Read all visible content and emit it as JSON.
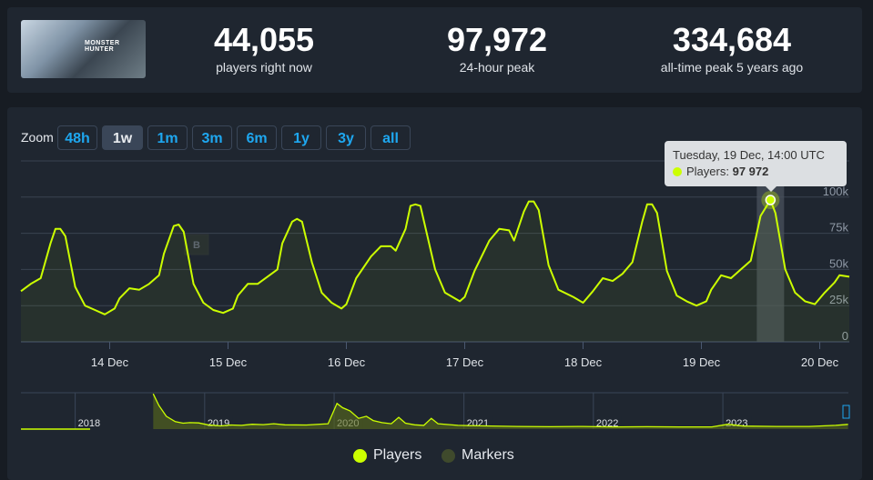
{
  "game": {
    "cover_title": "MONSTER HUNTER"
  },
  "stats": [
    {
      "value": "44,055",
      "label": "players right now"
    },
    {
      "value": "97,972",
      "label": "24-hour peak"
    },
    {
      "value": "334,684",
      "label": "all-time peak 5 years ago"
    }
  ],
  "zoom": {
    "label": "Zoom",
    "buttons": [
      "48h",
      "1w",
      "1m",
      "3m",
      "6m",
      "1y",
      "3y",
      "all"
    ],
    "selected": "1w"
  },
  "tooltip": {
    "date": "Tuesday, 19 Dec, 14:00 UTC",
    "series": "Players:",
    "value": "97 972"
  },
  "marker": {
    "label": "B"
  },
  "legend": [
    {
      "label": "Players",
      "color": "#ccff00"
    },
    {
      "label": "Markers",
      "color": "#3f4a2c"
    }
  ],
  "colors": {
    "line": "#ccff00",
    "grid": "#3a4350",
    "highlight": "#4a525c"
  },
  "chart_data": [
    {
      "type": "line",
      "series": [
        {
          "name": "Players",
          "values": [
            [
              "2023-12-13T06:00",
              35000
            ],
            [
              "2023-12-13T08:00",
              40000
            ],
            [
              "2023-12-13T10:00",
              44000
            ],
            [
              "2023-12-13T12:00",
              68000
            ],
            [
              "2023-12-13T13:00",
              78000
            ],
            [
              "2023-12-13T14:00",
              78000
            ],
            [
              "2023-12-13T15:00",
              73000
            ],
            [
              "2023-12-13T17:00",
              38000
            ],
            [
              "2023-12-13T19:00",
              25000
            ],
            [
              "2023-12-13T21:00",
              22000
            ],
            [
              "2023-12-13T23:00",
              19000
            ],
            [
              "2023-12-14T01:00",
              23000
            ],
            [
              "2023-12-14T02:00",
              30000
            ],
            [
              "2023-12-14T04:00",
              37000
            ],
            [
              "2023-12-14T06:00",
              36000
            ],
            [
              "2023-12-14T08:00",
              40000
            ],
            [
              "2023-12-14T10:00",
              46000
            ],
            [
              "2023-12-14T11:00",
              61000
            ],
            [
              "2023-12-14T13:00",
              80000
            ],
            [
              "2023-12-14T14:00",
              81000
            ],
            [
              "2023-12-14T15:00",
              76000
            ],
            [
              "2023-12-14T17:00",
              40000
            ],
            [
              "2023-12-14T19:00",
              27000
            ],
            [
              "2023-12-14T21:00",
              22000
            ],
            [
              "2023-12-14T23:00",
              20000
            ],
            [
              "2023-12-15T01:00",
              23000
            ],
            [
              "2023-12-15T02:00",
              32000
            ],
            [
              "2023-12-15T04:00",
              40000
            ],
            [
              "2023-12-15T06:00",
              40000
            ],
            [
              "2023-12-15T08:00",
              45000
            ],
            [
              "2023-12-15T10:00",
              50000
            ],
            [
              "2023-12-15T11:00",
              68000
            ],
            [
              "2023-12-15T13:00",
              83000
            ],
            [
              "2023-12-15T14:00",
              85000
            ],
            [
              "2023-12-15T15:00",
              83000
            ],
            [
              "2023-12-15T17:00",
              55000
            ],
            [
              "2023-12-15T19:00",
              34000
            ],
            [
              "2023-12-15T21:00",
              27000
            ],
            [
              "2023-12-15T23:00",
              23000
            ],
            [
              "2023-12-16T00:00",
              26000
            ],
            [
              "2023-12-16T02:00",
              44000
            ],
            [
              "2023-12-16T05:00",
              59000
            ],
            [
              "2023-12-16T07:00",
              66000
            ],
            [
              "2023-12-16T09:00",
              66000
            ],
            [
              "2023-12-16T10:00",
              63000
            ],
            [
              "2023-12-16T12:00",
              78000
            ],
            [
              "2023-12-16T13:00",
              94000
            ],
            [
              "2023-12-16T14:00",
              95000
            ],
            [
              "2023-12-16T15:00",
              94000
            ],
            [
              "2023-12-16T18:00",
              50000
            ],
            [
              "2023-12-16T20:00",
              34000
            ],
            [
              "2023-12-16T23:00",
              28000
            ],
            [
              "2023-12-17T00:00",
              31000
            ],
            [
              "2023-12-17T02:00",
              49000
            ],
            [
              "2023-12-17T05:00",
              70000
            ],
            [
              "2023-12-17T07:00",
              78000
            ],
            [
              "2023-12-17T09:00",
              77000
            ],
            [
              "2023-12-17T10:00",
              70000
            ],
            [
              "2023-12-17T12:00",
              90000
            ],
            [
              "2023-12-17T13:00",
              97000
            ],
            [
              "2023-12-17T14:00",
              97000
            ],
            [
              "2023-12-17T15:00",
              91000
            ],
            [
              "2023-12-17T17:00",
              53000
            ],
            [
              "2023-12-17T19:00",
              36000
            ],
            [
              "2023-12-17T22:00",
              31000
            ],
            [
              "2023-12-18T00:00",
              27000
            ],
            [
              "2023-12-18T02:00",
              35000
            ],
            [
              "2023-12-18T04:00",
              44000
            ],
            [
              "2023-12-18T06:00",
              42000
            ],
            [
              "2023-12-18T08:00",
              47000
            ],
            [
              "2023-12-18T10:00",
              55000
            ],
            [
              "2023-12-18T12:00",
              83000
            ],
            [
              "2023-12-18T13:00",
              95000
            ],
            [
              "2023-12-18T14:00",
              95000
            ],
            [
              "2023-12-18T15:00",
              89000
            ],
            [
              "2023-12-18T17:00",
              49000
            ],
            [
              "2023-12-18T19:00",
              32000
            ],
            [
              "2023-12-18T21:00",
              28000
            ],
            [
              "2023-12-18T23:00",
              25000
            ],
            [
              "2023-12-19T01:00",
              28000
            ],
            [
              "2023-12-19T02:00",
              36000
            ],
            [
              "2023-12-19T04:00",
              46000
            ],
            [
              "2023-12-19T06:00",
              44000
            ],
            [
              "2023-12-19T08:00",
              50000
            ],
            [
              "2023-12-19T10:00",
              56000
            ],
            [
              "2023-12-19T12:00",
              87000
            ],
            [
              "2023-12-19T14:00",
              97972
            ],
            [
              "2023-12-19T15:00",
              89000
            ],
            [
              "2023-12-19T17:00",
              50000
            ],
            [
              "2023-12-19T19:00",
              34000
            ],
            [
              "2023-12-19T21:00",
              28000
            ],
            [
              "2023-12-19T23:00",
              26000
            ],
            [
              "2023-12-20T01:00",
              34000
            ],
            [
              "2023-12-20T03:00",
              41000
            ],
            [
              "2023-12-20T04:00",
              46000
            ],
            [
              "2023-12-20T06:00",
              45000
            ]
          ]
        }
      ],
      "x_ticks": [
        "14 Dec",
        "15 Dec",
        "16 Dec",
        "17 Dec",
        "18 Dec",
        "19 Dec",
        "20 Dec"
      ],
      "y_ticks": [
        "0",
        "25k",
        "50k",
        "75k",
        "100k"
      ],
      "ylim": [
        0,
        125000
      ],
      "xlim": [
        "2023-12-13T06:00",
        "2023-12-20T06:00"
      ],
      "highlight": "2023-12-19T14:00",
      "grid": true
    },
    {
      "type": "area",
      "role": "navigator",
      "series": [
        {
          "name": "Players",
          "values": [
            [
              "2018-08-09",
              330000
            ],
            [
              "2018-08-25",
              220000
            ],
            [
              "2018-09-15",
              120000
            ],
            [
              "2018-10-10",
              70000
            ],
            [
              "2018-11-01",
              55000
            ],
            [
              "2018-11-20",
              60000
            ],
            [
              "2018-12-15",
              58000
            ],
            [
              "2019-01-10",
              40000
            ],
            [
              "2019-02-15",
              30000
            ],
            [
              "2019-03-15",
              38000
            ],
            [
              "2019-04-15",
              35000
            ],
            [
              "2019-05-15",
              45000
            ],
            [
              "2019-06-15",
              42000
            ],
            [
              "2019-07-15",
              50000
            ],
            [
              "2019-08-15",
              40000
            ],
            [
              "2019-10-15",
              38000
            ],
            [
              "2019-12-15",
              50000
            ],
            [
              "2020-01-09",
              240000
            ],
            [
              "2020-01-25",
              200000
            ],
            [
              "2020-02-15",
              170000
            ],
            [
              "2020-03-10",
              100000
            ],
            [
              "2020-04-01",
              120000
            ],
            [
              "2020-04-20",
              80000
            ],
            [
              "2020-05-15",
              60000
            ],
            [
              "2020-06-10",
              50000
            ],
            [
              "2020-07-01",
              110000
            ],
            [
              "2020-07-20",
              55000
            ],
            [
              "2020-08-15",
              40000
            ],
            [
              "2020-09-10",
              35000
            ],
            [
              "2020-10-01",
              100000
            ],
            [
              "2020-10-20",
              50000
            ],
            [
              "2020-12-15",
              35000
            ],
            [
              "2021-03-01",
              30000
            ],
            [
              "2021-06-01",
              25000
            ],
            [
              "2021-09-01",
              22000
            ],
            [
              "2021-12-01",
              25000
            ],
            [
              "2022-03-01",
              20000
            ],
            [
              "2022-06-01",
              22000
            ],
            [
              "2022-09-01",
              20000
            ],
            [
              "2022-12-01",
              20000
            ],
            [
              "2023-01-15",
              45000
            ],
            [
              "2023-03-01",
              28000
            ],
            [
              "2023-06-01",
              25000
            ],
            [
              "2023-09-01",
              25000
            ],
            [
              "2023-11-15",
              35000
            ],
            [
              "2023-12-20",
              44055
            ]
          ]
        }
      ],
      "x_ticks": [
        "2018",
        "2019",
        "2020",
        "2021",
        "2022",
        "2023"
      ],
      "xlim": [
        "2017-08-01",
        "2023-12-21"
      ]
    }
  ]
}
